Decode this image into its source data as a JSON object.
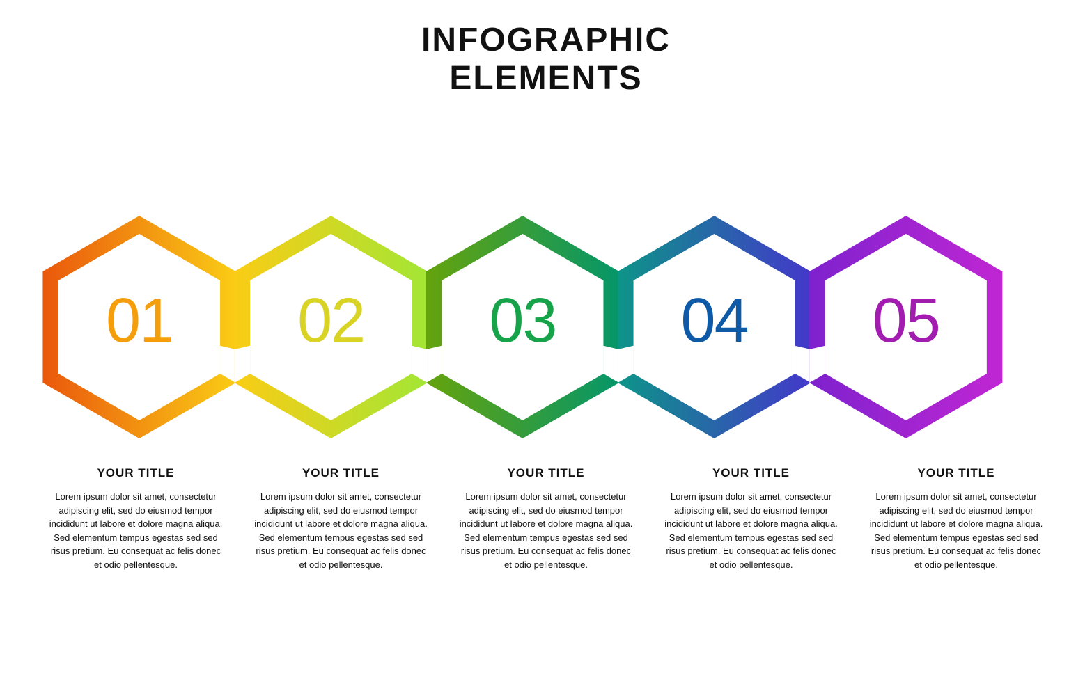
{
  "header": {
    "line1": "INFOGRAPHIC",
    "line2": "ELEMENTS",
    "color": "#111111",
    "fontsize": 48
  },
  "infographic": {
    "type": "infographic",
    "layout": "horizontal-interlocked-hexagons",
    "count": 5,
    "hex_stroke_width": 26,
    "hex_outer_radius": 160,
    "background_color": "#ffffff",
    "steps": [
      {
        "number": "01",
        "number_color": "#f59e0b",
        "grad_from": "#ea580c",
        "grad_to": "#facc15",
        "title": "YOUR TITLE",
        "body": "Lorem ipsum dolor sit amet, consectetur adipiscing elit, sed do eiusmod tempor incididunt ut labore et dolore magna aliqua. Sed elementum tempus egestas sed sed risus pretium. Eu consequat ac felis donec et odio pellentesque."
      },
      {
        "number": "02",
        "number_color": "#d9d326",
        "grad_from": "#facc15",
        "grad_to": "#a3e635",
        "title": "YOUR TITLE",
        "body": "Lorem ipsum dolor sit amet, consectetur adipiscing elit, sed do eiusmod tempor incididunt ut labore et dolore magna aliqua. Sed elementum tempus egestas sed sed risus pretium. Eu consequat ac felis donec et odio pellentesque."
      },
      {
        "number": "03",
        "number_color": "#16a34a",
        "grad_from": "#65a30d",
        "grad_to": "#059669",
        "title": "YOUR TITLE",
        "body": "Lorem ipsum dolor sit amet, consectetur adipiscing elit, sed do eiusmod tempor incididunt ut labore et dolore magna aliqua. Sed elementum tempus egestas sed sed risus pretium. Eu consequat ac felis donec et odio pellentesque."
      },
      {
        "number": "04",
        "number_color": "#0e5aa7",
        "grad_from": "#0d9488",
        "grad_to": "#4338ca",
        "title": "YOUR TITLE",
        "body": "Lorem ipsum dolor sit amet, consectetur adipiscing elit, sed do eiusmod tempor incididunt ut labore et dolore magna aliqua. Sed elementum tempus egestas sed sed risus pretium. Eu consequat ac felis donec et odio pellentesque."
      },
      {
        "number": "05",
        "number_color": "#a21caf",
        "grad_from": "#7e22ce",
        "grad_to": "#c026d3",
        "title": "YOUR TITLE",
        "body": "Lorem ipsum dolor sit amet, consectetur adipiscing elit, sed do eiusmod tempor incididunt ut labore et dolore magna aliqua. Sed elementum tempus egestas sed sed risus pretium. Eu consequat ac felis donec et odio pellentesque."
      }
    ],
    "title_fontsize": 17,
    "body_fontsize": 13,
    "number_fontsize": 90
  }
}
